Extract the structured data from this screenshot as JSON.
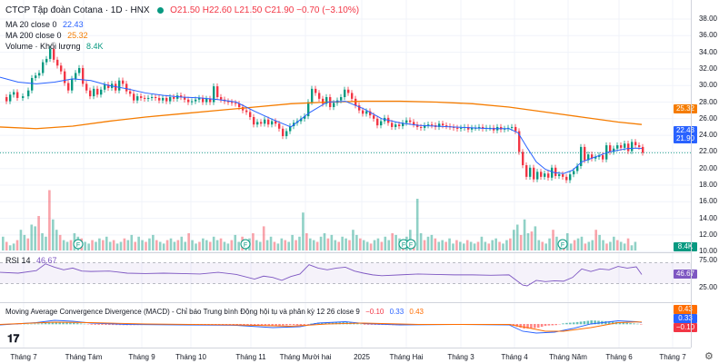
{
  "header": {
    "title": "CTCP Tập đoàn Cotana · 1D · HNX",
    "ohlc": "O21.50 H22.60 L21.50 C21.90 −0.70 (−3.10%)",
    "ma20_label": "MA 20 close 0",
    "ma20_value": "22.43",
    "ma200_label": "MA 200 close 0",
    "ma200_value": "25.32",
    "volume_label": "Volume · Khối lượng",
    "volume_value": "8.4K"
  },
  "price_axis": [
    "38.00",
    "36.00",
    "34.00",
    "32.00",
    "30.00",
    "28.00",
    "26.00",
    "24.00",
    "22.00",
    "20.00",
    "18.00",
    "16.00",
    "14.00",
    "12.00",
    "10.00"
  ],
  "price_badges": {
    "ma200": "25.32",
    "ma20": "22.43",
    "close": "21.90",
    "volume": "8.4K"
  },
  "rsi": {
    "label": "RSI 14",
    "value": "46.67",
    "axis": [
      "75.00",
      "50.00",
      "25.00"
    ],
    "badge": "46.67"
  },
  "macd": {
    "label": "Moving Average Convergence Divergence (MACD) - Chỉ báo Trung bình Động hội tụ và phân kỳ 12 26 close 9",
    "v1": "−0.10",
    "v2": "0.33",
    "v3": "0.43",
    "badges": [
      "0.43",
      "0.33",
      "−0.10"
    ]
  },
  "time_axis": [
    "Tháng 7",
    "Tháng Tám",
    "Tháng 9",
    "Tháng 10",
    "Tháng 11",
    "Tháng Mười hai",
    "2025",
    "Tháng Hai",
    "Tháng 3",
    "Tháng 4",
    "Tháng Năm",
    "Tháng 6",
    "Tháng 7"
  ],
  "colors": {
    "up": "#089981",
    "down": "#f23645",
    "ma20": "#2962ff",
    "ma200": "#f57c00",
    "rsi": "#7e57c2",
    "macd": "#2962ff",
    "signal": "#ff6d00"
  },
  "chart_data": {
    "type": "candlestick",
    "title": "CTCP Tập đoàn Cotana · 1D · HNX",
    "ylim": [
      9,
      38
    ],
    "close_path": [
      [
        0,
        28.6
      ],
      [
        6,
        28.1
      ],
      [
        10,
        28.9
      ],
      [
        14,
        29.2
      ],
      [
        18,
        28.5
      ],
      [
        24,
        28.7
      ],
      [
        30,
        29.4
      ],
      [
        34,
        30.9
      ],
      [
        38,
        31.2
      ],
      [
        42,
        31.5
      ],
      [
        46,
        32.8
      ],
      [
        50,
        33.2
      ],
      [
        54,
        34.4
      ],
      [
        58,
        33.1
      ],
      [
        62,
        32.4
      ],
      [
        66,
        31.7
      ],
      [
        70,
        30.3
      ],
      [
        74,
        29.4
      ],
      [
        78,
        30.8
      ],
      [
        82,
        31.5
      ],
      [
        86,
        32.1
      ],
      [
        90,
        30.2
      ],
      [
        94,
        29.4
      ],
      [
        98,
        28.7
      ],
      [
        102,
        29.6
      ],
      [
        106,
        28.9
      ],
      [
        110,
        29.5
      ],
      [
        114,
        30.1
      ],
      [
        118,
        29.7
      ],
      [
        122,
        30.2
      ],
      [
        126,
        29.4
      ],
      [
        130,
        30.6
      ],
      [
        134,
        30.2
      ],
      [
        138,
        29.3
      ],
      [
        142,
        29.0
      ],
      [
        146,
        28.2
      ],
      [
        150,
        28.7
      ],
      [
        154,
        28.5
      ],
      [
        158,
        28.4
      ],
      [
        162,
        28.5
      ],
      [
        166,
        28.6
      ],
      [
        170,
        28.5
      ],
      [
        174,
        28.2
      ],
      [
        178,
        28.5
      ],
      [
        182,
        28.1
      ],
      [
        186,
        28.6
      ],
      [
        190,
        28.4
      ],
      [
        194,
        28.8
      ],
      [
        198,
        28.6
      ],
      [
        202,
        28.3
      ],
      [
        206,
        28.0
      ],
      [
        210,
        28.1
      ],
      [
        214,
        28.3
      ],
      [
        218,
        28.5
      ],
      [
        222,
        28.0
      ],
      [
        226,
        28.4
      ],
      [
        230,
        28.0
      ],
      [
        234,
        29.9
      ],
      [
        238,
        28.6
      ],
      [
        242,
        28.3
      ],
      [
        246,
        28.1
      ],
      [
        250,
        28.0
      ],
      [
        254,
        27.9
      ],
      [
        258,
        27.8
      ],
      [
        262,
        27.4
      ],
      [
        266,
        27.0
      ],
      [
        270,
        26.8
      ],
      [
        274,
        26.2
      ],
      [
        278,
        25.3
      ],
      [
        282,
        25.6
      ],
      [
        286,
        25.4
      ],
      [
        290,
        25.9
      ],
      [
        294,
        25.3
      ],
      [
        298,
        25.7
      ],
      [
        302,
        25.4
      ],
      [
        306,
        24.8
      ],
      [
        310,
        23.9
      ],
      [
        314,
        24.5
      ],
      [
        318,
        25.1
      ],
      [
        322,
        25.5
      ],
      [
        326,
        25.7
      ],
      [
        330,
        26.0
      ],
      [
        334,
        26.3
      ],
      [
        338,
        28.0
      ],
      [
        342,
        29.6
      ],
      [
        346,
        29.1
      ],
      [
        350,
        28.4
      ],
      [
        354,
        27.8
      ],
      [
        358,
        28.6
      ],
      [
        362,
        27.4
      ],
      [
        366,
        27.9
      ],
      [
        370,
        28.2
      ],
      [
        374,
        28.6
      ],
      [
        378,
        29.5
      ],
      [
        382,
        29.1
      ],
      [
        386,
        28.4
      ],
      [
        390,
        27.6
      ],
      [
        394,
        27.0
      ],
      [
        398,
        26.6
      ],
      [
        402,
        26.9
      ],
      [
        406,
        26.4
      ],
      [
        410,
        26.0
      ],
      [
        414,
        25.2
      ],
      [
        418,
        25.7
      ],
      [
        422,
        26.1
      ],
      [
        426,
        25.5
      ],
      [
        430,
        25.0
      ],
      [
        434,
        25.3
      ],
      [
        438,
        25.1
      ],
      [
        442,
        25.5
      ],
      [
        446,
        25.8
      ],
      [
        450,
        25.6
      ],
      [
        454,
        25.3
      ],
      [
        458,
        25.0
      ],
      [
        462,
        24.9
      ],
      [
        466,
        25.2
      ],
      [
        470,
        25.3
      ],
      [
        474,
        25.2
      ],
      [
        478,
        25.0
      ],
      [
        482,
        25.4
      ],
      [
        486,
        25.2
      ],
      [
        490,
        25.1
      ],
      [
        494,
        25.0
      ],
      [
        498,
        24.9
      ],
      [
        502,
        24.8
      ],
      [
        506,
        24.9
      ],
      [
        510,
        25.0
      ],
      [
        514,
        24.7
      ],
      [
        518,
        24.9
      ],
      [
        522,
        24.9
      ],
      [
        526,
        25.0
      ],
      [
        530,
        24.8
      ],
      [
        534,
        24.9
      ],
      [
        538,
        24.9
      ],
      [
        542,
        24.6
      ],
      [
        546,
        25.0
      ],
      [
        550,
        24.7
      ],
      [
        554,
        24.8
      ],
      [
        558,
        24.9
      ],
      [
        562,
        25.0
      ],
      [
        566,
        24.5
      ],
      [
        570,
        22.0
      ],
      [
        574,
        20.4
      ],
      [
        578,
        19.0
      ],
      [
        582,
        20.1
      ],
      [
        586,
        18.7
      ],
      [
        590,
        19.6
      ],
      [
        594,
        19.0
      ],
      [
        598,
        19.4
      ],
      [
        602,
        18.9
      ],
      [
        606,
        20.1
      ],
      [
        610,
        19.1
      ],
      [
        614,
        19.3
      ],
      [
        618,
        19.0
      ],
      [
        622,
        18.6
      ],
      [
        626,
        19.3
      ],
      [
        630,
        19.7
      ],
      [
        634,
        20.3
      ],
      [
        638,
        22.6
      ],
      [
        642,
        21.0
      ],
      [
        646,
        21.7
      ],
      [
        650,
        21.2
      ],
      [
        654,
        21.4
      ],
      [
        658,
        21.6
      ],
      [
        662,
        21.1
      ],
      [
        666,
        22.8
      ],
      [
        670,
        22.0
      ],
      [
        674,
        22.4
      ],
      [
        678,
        22.8
      ],
      [
        682,
        22.5
      ],
      [
        686,
        23.0
      ],
      [
        690,
        22.1
      ],
      [
        694,
        23.2
      ],
      [
        698,
        22.8
      ],
      [
        702,
        22.6
      ],
      [
        706,
        21.9
      ]
    ],
    "ma20_path": [
      [
        0,
        31.0
      ],
      [
        20,
        30.4
      ],
      [
        40,
        30.2
      ],
      [
        60,
        30.4
      ],
      [
        80,
        30.8
      ],
      [
        100,
        30.6
      ],
      [
        120,
        30.0
      ],
      [
        140,
        29.6
      ],
      [
        160,
        29.1
      ],
      [
        180,
        28.8
      ],
      [
        200,
        28.6
      ],
      [
        220,
        28.5
      ],
      [
        240,
        28.3
      ],
      [
        260,
        28.0
      ],
      [
        280,
        26.9
      ],
      [
        300,
        25.9
      ],
      [
        320,
        25.0
      ],
      [
        340,
        26.7
      ],
      [
        360,
        28.0
      ],
      [
        380,
        28.1
      ],
      [
        400,
        27.2
      ],
      [
        420,
        26.0
      ],
      [
        440,
        25.5
      ],
      [
        460,
        25.2
      ],
      [
        480,
        25.1
      ],
      [
        500,
        25.0
      ],
      [
        520,
        24.9
      ],
      [
        540,
        24.8
      ],
      [
        560,
        24.8
      ],
      [
        570,
        24.3
      ],
      [
        580,
        22.5
      ],
      [
        590,
        20.8
      ],
      [
        600,
        19.9
      ],
      [
        610,
        19.5
      ],
      [
        620,
        19.4
      ],
      [
        630,
        19.8
      ],
      [
        640,
        20.8
      ],
      [
        650,
        21.2
      ],
      [
        660,
        21.6
      ],
      [
        670,
        22.0
      ],
      [
        680,
        22.2
      ],
      [
        690,
        22.4
      ],
      [
        700,
        22.45
      ],
      [
        706,
        22.43
      ]
    ],
    "ma200_path": [
      [
        0,
        25.0
      ],
      [
        40,
        24.8
      ],
      [
        80,
        25.1
      ],
      [
        120,
        25.7
      ],
      [
        160,
        26.2
      ],
      [
        200,
        26.6
      ],
      [
        240,
        27.0
      ],
      [
        280,
        27.4
      ],
      [
        320,
        27.8
      ],
      [
        360,
        28.0
      ],
      [
        400,
        28.1
      ],
      [
        440,
        28.1
      ],
      [
        480,
        28.0
      ],
      [
        520,
        27.8
      ],
      [
        560,
        27.4
      ],
      [
        600,
        26.8
      ],
      [
        640,
        26.2
      ],
      [
        680,
        25.6
      ],
      [
        706,
        25.3
      ]
    ],
    "volume_bars": [
      8,
      5,
      3,
      4,
      6,
      12,
      9,
      7,
      15,
      14,
      20,
      10,
      8,
      35,
      18,
      12,
      9,
      6,
      5,
      6,
      10,
      8,
      7,
      5,
      4,
      6,
      5,
      7,
      6,
      8,
      5,
      6,
      4,
      5,
      7,
      6,
      9,
      5,
      8,
      6,
      5,
      7,
      9,
      6,
      5,
      4,
      6,
      7,
      5,
      6,
      8,
      5,
      10,
      6,
      4,
      5,
      7,
      6,
      5,
      8,
      6,
      7,
      5,
      4,
      6,
      9,
      5,
      8,
      6,
      7,
      10,
      6,
      5,
      14,
      6,
      8,
      5,
      4,
      7,
      6,
      5,
      9,
      6,
      8,
      22,
      10,
      7,
      6,
      5,
      8,
      10,
      7,
      9,
      6,
      5,
      8,
      7,
      6,
      12,
      9,
      7,
      6,
      5,
      4,
      6,
      7,
      5,
      8,
      6,
      10,
      9,
      7,
      5,
      8,
      12,
      6,
      30,
      10,
      6,
      8,
      9,
      7,
      5,
      6,
      5,
      7,
      4,
      6,
      5,
      4,
      6,
      5,
      4,
      5,
      8,
      5,
      4,
      6,
      7,
      5,
      4,
      6,
      7,
      12,
      15,
      9,
      18,
      10,
      11,
      14,
      6,
      5,
      4,
      7,
      12,
      8,
      6,
      5,
      10,
      4,
      6,
      7,
      8,
      4,
      5,
      6,
      12,
      9,
      6,
      4,
      5,
      8,
      6,
      5,
      4,
      7,
      3,
      5
    ],
    "rsi_path": [
      [
        0,
        52
      ],
      [
        20,
        50
      ],
      [
        40,
        56
      ],
      [
        50,
        72
      ],
      [
        60,
        64
      ],
      [
        70,
        58
      ],
      [
        80,
        62
      ],
      [
        90,
        55
      ],
      [
        100,
        54
      ],
      [
        120,
        55
      ],
      [
        140,
        50
      ],
      [
        160,
        49
      ],
      [
        180,
        50
      ],
      [
        200,
        49
      ],
      [
        220,
        48
      ],
      [
        240,
        52
      ],
      [
        260,
        47
      ],
      [
        280,
        36
      ],
      [
        290,
        43
      ],
      [
        300,
        40
      ],
      [
        310,
        33
      ],
      [
        320,
        42
      ],
      [
        330,
        48
      ],
      [
        340,
        70
      ],
      [
        350,
        62
      ],
      [
        360,
        58
      ],
      [
        370,
        62
      ],
      [
        380,
        64
      ],
      [
        390,
        55
      ],
      [
        400,
        50
      ],
      [
        410,
        46
      ],
      [
        420,
        44
      ],
      [
        440,
        46
      ],
      [
        460,
        48
      ],
      [
        480,
        47
      ],
      [
        500,
        46
      ],
      [
        520,
        46
      ],
      [
        540,
        45
      ],
      [
        560,
        46
      ],
      [
        570,
        30
      ],
      [
        575,
        22
      ],
      [
        580,
        20
      ],
      [
        590,
        33
      ],
      [
        600,
        30
      ],
      [
        610,
        32
      ],
      [
        620,
        31
      ],
      [
        630,
        40
      ],
      [
        640,
        60
      ],
      [
        650,
        54
      ],
      [
        660,
        60
      ],
      [
        670,
        58
      ],
      [
        680,
        66
      ],
      [
        690,
        62
      ],
      [
        700,
        65
      ],
      [
        706,
        46.67
      ]
    ],
    "macd_path": [
      [
        0,
        -0.2
      ],
      [
        40,
        0.3
      ],
      [
        60,
        0.8
      ],
      [
        80,
        0.6
      ],
      [
        100,
        0.2
      ],
      [
        140,
        -0.1
      ],
      [
        200,
        -0.2
      ],
      [
        260,
        -0.3
      ],
      [
        300,
        -0.8
      ],
      [
        330,
        -0.6
      ],
      [
        350,
        0.2
      ],
      [
        380,
        0.5
      ],
      [
        400,
        0.1
      ],
      [
        440,
        -0.2
      ],
      [
        500,
        -0.1
      ],
      [
        560,
        -0.2
      ],
      [
        575,
        -1.6
      ],
      [
        590,
        -2.0
      ],
      [
        610,
        -1.8
      ],
      [
        630,
        -1.0
      ],
      [
        650,
        0.0
      ],
      [
        680,
        0.7
      ],
      [
        700,
        0.5
      ],
      [
        706,
        0.33
      ]
    ],
    "signal_path": [
      [
        0,
        -0.1
      ],
      [
        60,
        0.4
      ],
      [
        100,
        0.3
      ],
      [
        160,
        0.0
      ],
      [
        260,
        -0.2
      ],
      [
        320,
        -0.5
      ],
      [
        360,
        0.0
      ],
      [
        400,
        0.2
      ],
      [
        460,
        -0.1
      ],
      [
        560,
        -0.1
      ],
      [
        580,
        -0.8
      ],
      [
        600,
        -1.6
      ],
      [
        620,
        -1.6
      ],
      [
        650,
        -0.8
      ],
      [
        680,
        0.3
      ],
      [
        700,
        0.45
      ],
      [
        706,
        0.43
      ]
    ]
  }
}
